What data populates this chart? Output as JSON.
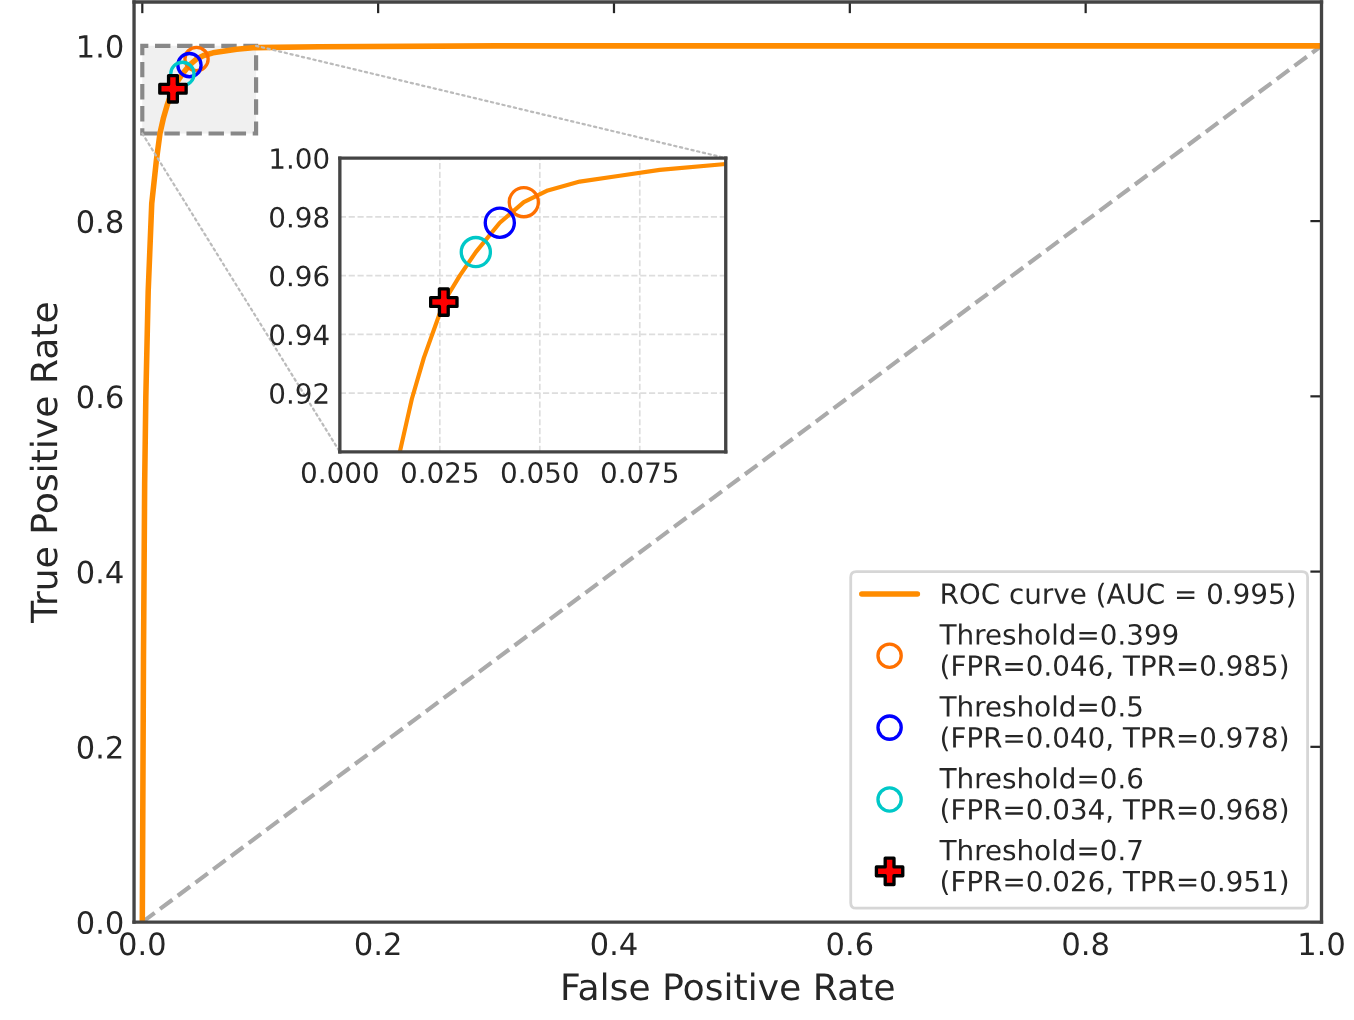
{
  "chart_data": [
    {
      "type": "line",
      "xlabel": "False Positive Rate",
      "ylabel": "True Positive Rate",
      "xlim": [
        -0.007,
        1.0
      ],
      "ylim": [
        0,
        1.05
      ],
      "xticks": [
        {
          "value": 0,
          "label": "0.0"
        },
        {
          "value": 0.2,
          "label": "0.2"
        },
        {
          "value": 0.4,
          "label": "0.4"
        },
        {
          "value": 0.6,
          "label": "0.6"
        },
        {
          "value": 0.8,
          "label": "0.8"
        },
        {
          "value": 1.0,
          "label": "1.0"
        }
      ],
      "yticks": [
        {
          "value": 0,
          "label": "0.0"
        },
        {
          "value": 0.2,
          "label": "0.2"
        },
        {
          "value": 0.4,
          "label": "0.4"
        },
        {
          "value": 0.6,
          "label": "0.6"
        },
        {
          "value": 0.8,
          "label": "0.8"
        },
        {
          "value": 1.0,
          "label": "1.0"
        }
      ],
      "grid": false,
      "legend": "bottom right",
      "series": [
        {
          "x": [
            0,
            1
          ],
          "values": [
            0,
            1
          ],
          "color": "#aaaaaa",
          "line_style": "dashed"
        },
        {
          "name": "ROC curve (AUC = 0.995)",
          "color": "#ff8c00",
          "line_style": "solid",
          "x": [
            0,
            0.001,
            0.002,
            0.003,
            0.005,
            0.008,
            0.012,
            0.015,
            0.018,
            0.021,
            0.026,
            0.03,
            0.034,
            0.04,
            0.046,
            0.052,
            0.06,
            0.07,
            0.08,
            0.096,
            0.15,
            0.3,
            0.5,
            1.0
          ],
          "values": [
            0,
            0.3,
            0.5,
            0.6,
            0.72,
            0.82,
            0.87,
            0.9,
            0.918,
            0.932,
            0.951,
            0.96,
            0.968,
            0.978,
            0.985,
            0.989,
            0.992,
            0.994,
            0.996,
            0.998,
            0.999,
            1.0,
            1.0,
            1.0
          ]
        },
        {
          "type": "scatter",
          "name": "Threshold=0.399\n(FPR=0.046, TPR=0.985)",
          "color": "#ff7000",
          "marker": "circle",
          "x": [
            0.046
          ],
          "values": [
            0.985
          ]
        },
        {
          "type": "scatter",
          "name": "Threshold=0.5\n(FPR=0.040, TPR=0.978)",
          "color": "#0000ff",
          "marker": "circle",
          "x": [
            0.04
          ],
          "values": [
            0.978
          ]
        },
        {
          "type": "scatter",
          "name": "Threshold=0.6\n(FPR=0.034, TPR=0.968)",
          "color": "#00c8c8",
          "marker": "circle",
          "x": [
            0.034
          ],
          "values": [
            0.968
          ]
        },
        {
          "type": "scatter",
          "name": "Threshold=0.7\n(FPR=0.026, TPR=0.951)",
          "color": "#ff0000",
          "marker": "cross",
          "x": [
            0.026
          ],
          "values": [
            0.951
          ]
        }
      ]
    },
    {
      "type": "line",
      "xlim": [
        0,
        0.0965
      ],
      "ylim": [
        0.9,
        1.0
      ],
      "xticks": [
        {
          "value": 0,
          "label": "0.000"
        },
        0.025,
        {
          "value": 0.05,
          "label": "0.050"
        },
        0.075
      ],
      "yticks": [
        0.92,
        0.94,
        0.96,
        0.98,
        {
          "value": 1.0,
          "label": "1.00"
        }
      ],
      "grid": true,
      "series": [
        {
          "color": "#ff8c00",
          "line_style": "solid",
          "x": [
            0.015,
            0.018,
            0.021,
            0.026,
            0.03,
            0.034,
            0.04,
            0.046,
            0.052,
            0.06,
            0.07,
            0.08,
            0.0965
          ],
          "values": [
            0.9,
            0.918,
            0.932,
            0.951,
            0.96,
            0.968,
            0.978,
            0.985,
            0.989,
            0.992,
            0.994,
            0.996,
            0.998
          ]
        },
        {
          "type": "scatter",
          "color": "#ff7000",
          "marker": "circle",
          "x": [
            0.046
          ],
          "values": [
            0.985
          ]
        },
        {
          "type": "scatter",
          "color": "#0000ff",
          "marker": "circle",
          "x": [
            0.04
          ],
          "values": [
            0.978
          ]
        },
        {
          "type": "scatter",
          "color": "#00c8c8",
          "marker": "circle",
          "x": [
            0.034
          ],
          "values": [
            0.968
          ]
        },
        {
          "type": "scatter",
          "color": "#ff0000",
          "marker": "cross",
          "x": [
            0.026
          ],
          "values": [
            0.951
          ]
        }
      ]
    }
  ]
}
